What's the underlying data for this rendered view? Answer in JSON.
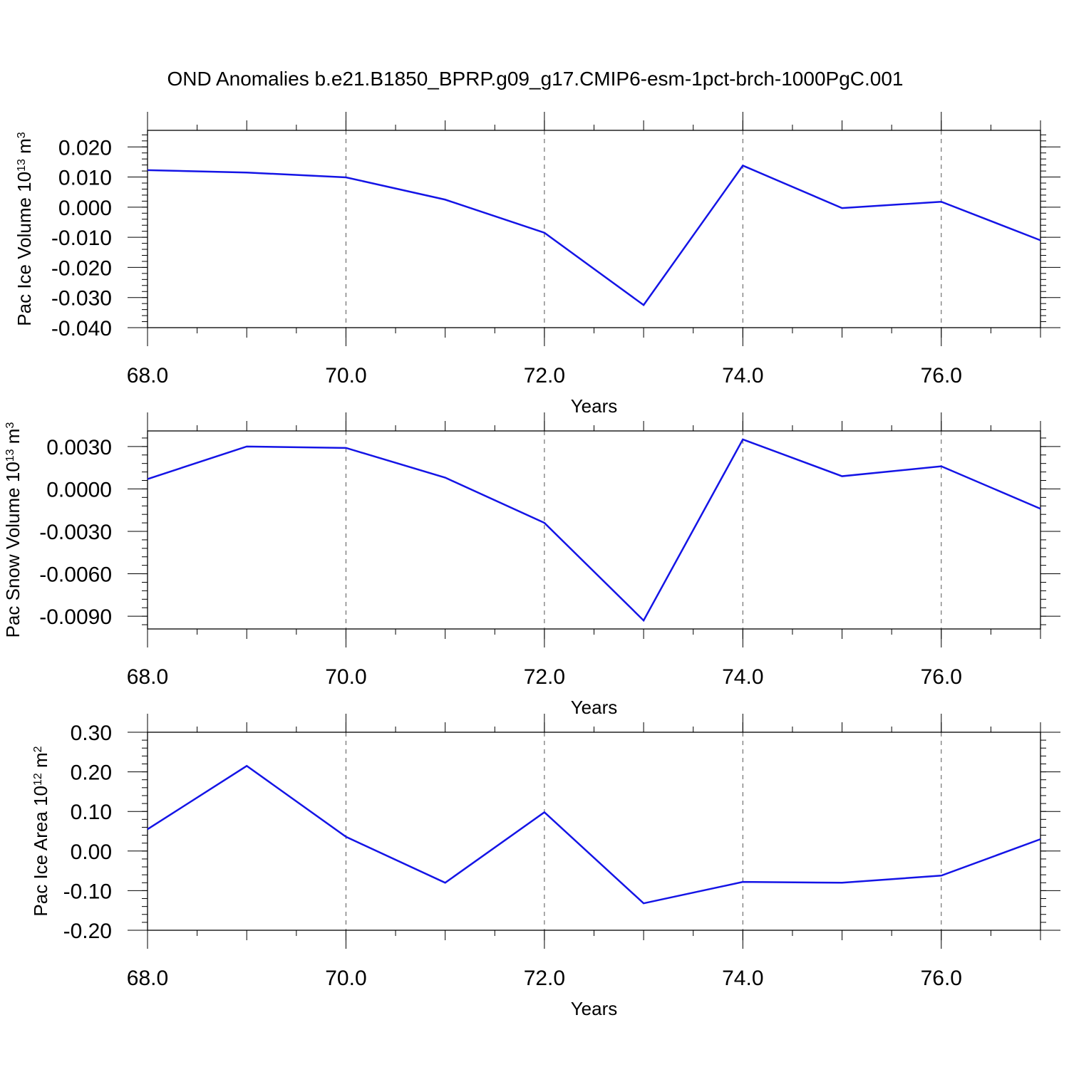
{
  "title": "OND Anomalies b.e21.B1850_BPRP.g09_g17.CMIP6-esm-1pct-brch-1000PgC.001",
  "line_color": "#1414e6",
  "chart_data": [
    {
      "type": "line",
      "xlabel": "Years",
      "ylabel": {
        "base": "Pac Ice Volume 10",
        "exp": "13",
        "unit": " m",
        "unit_exp": "3"
      },
      "xlim": [
        68,
        77
      ],
      "ylim": [
        -0.04,
        0.0255
      ],
      "xticks": [
        "68.0",
        "70.0",
        "72.0",
        "74.0",
        "76.0"
      ],
      "yticks": [
        "0.020",
        "0.010",
        "0.000",
        "-0.010",
        "-0.020",
        "-0.030",
        "-0.040"
      ],
      "x": [
        68,
        69,
        70,
        71,
        72,
        73,
        74,
        75,
        76,
        77
      ],
      "values": [
        0.0123,
        0.0115,
        0.0099,
        0.0025,
        -0.0085,
        -0.0325,
        0.0138,
        -0.0003,
        0.0018,
        -0.011
      ]
    },
    {
      "type": "line",
      "xlabel": "Years",
      "ylabel": {
        "base": "Pac Snow Volume 10",
        "exp": "13",
        "unit": " m",
        "unit_exp": "3"
      },
      "xlim": [
        68,
        77
      ],
      "ylim": [
        -0.0099,
        0.0041
      ],
      "xticks": [
        "68.0",
        "70.0",
        "72.0",
        "74.0",
        "76.0"
      ],
      "yticks": [
        "0.0030",
        "0.0000",
        "-0.0030",
        "-0.0060",
        "-0.0090"
      ],
      "x": [
        68,
        69,
        70,
        71,
        72,
        73,
        74,
        75,
        76,
        77
      ],
      "values": [
        0.0007,
        0.003,
        0.0029,
        0.0008,
        -0.0024,
        -0.0093,
        0.0035,
        0.0009,
        0.0016,
        -0.0014
      ]
    },
    {
      "type": "line",
      "xlabel": "Years",
      "ylabel": {
        "base": "Pac Ice Area 10",
        "exp": "12",
        "unit": " m",
        "unit_exp": "2"
      },
      "xlim": [
        68,
        77
      ],
      "ylim": [
        -0.2,
        0.3
      ],
      "xticks": [
        "68.0",
        "70.0",
        "72.0",
        "74.0",
        "76.0"
      ],
      "yticks": [
        "0.30",
        "0.20",
        "0.10",
        "0.00",
        "-0.10",
        "-0.20"
      ],
      "x": [
        68,
        69,
        70,
        71,
        72,
        73,
        74,
        75,
        76,
        77
      ],
      "values": [
        0.055,
        0.215,
        0.036,
        -0.08,
        0.098,
        -0.132,
        -0.078,
        -0.08,
        -0.062,
        0.03
      ]
    }
  ]
}
